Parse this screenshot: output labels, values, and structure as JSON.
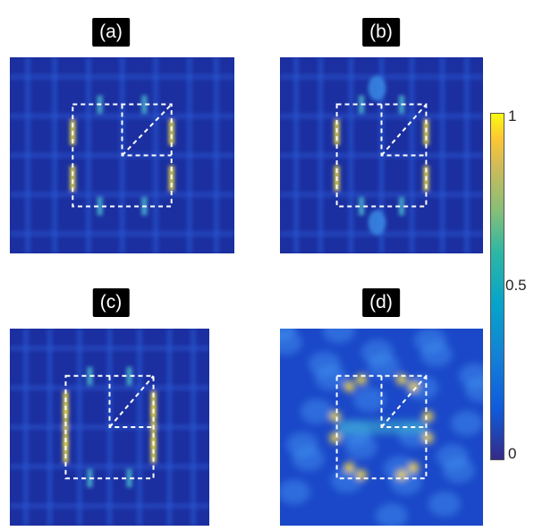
{
  "panels": [
    {
      "label": "(a)",
      "variant": "a"
    },
    {
      "label": "(b)",
      "variant": "b"
    },
    {
      "label": "(c)",
      "variant": "c"
    },
    {
      "label": "(d)",
      "variant": "d"
    }
  ],
  "colorbar": {
    "colormap": "parula",
    "range": [
      0,
      1
    ],
    "tick_labels": [
      "1",
      "0.5",
      "0"
    ]
  },
  "colors": {
    "background": "#1b2fa0",
    "overlay_dash": "#ffffff",
    "cmap_low": "#352a87",
    "cmap_mid": "#21b1c4",
    "cmap_high": "#f9fb0e"
  }
}
